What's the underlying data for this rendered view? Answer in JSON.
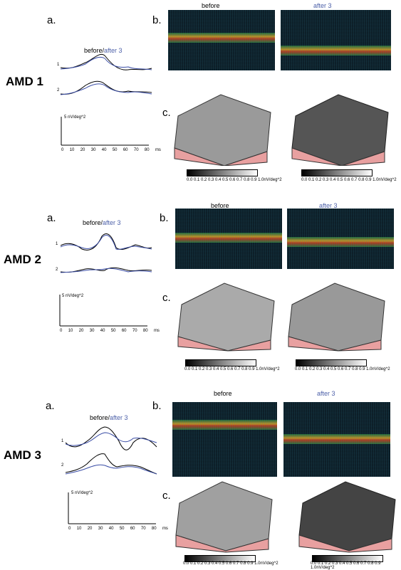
{
  "labels": {
    "a": "a.",
    "b": "b.",
    "c": "c."
  },
  "legend": {
    "before": "before/",
    "after": "after 3"
  },
  "oct_titles": {
    "before": "before",
    "after": "after 3"
  },
  "trace_numbers": {
    "one": "1",
    "two": "2"
  },
  "scale_label": "5 nV/deg^2",
  "time_ticks": [
    "0",
    "10",
    "20",
    "30",
    "40",
    "50",
    "60",
    "70",
    "80",
    "ms"
  ],
  "colorbar_label": "0.0 0.1 0.2 0.3 0.4 0.5 0.6 0.7 0.8 0.9 1.0nV/deg^2",
  "rows": [
    {
      "title": "AMD 1"
    },
    {
      "title": "AMD 2"
    },
    {
      "title": "AMD 3"
    }
  ],
  "colors": {
    "after_trace": "#3b4ea6",
    "before_trace": "#000000",
    "block_side": "#e8a0a0"
  }
}
